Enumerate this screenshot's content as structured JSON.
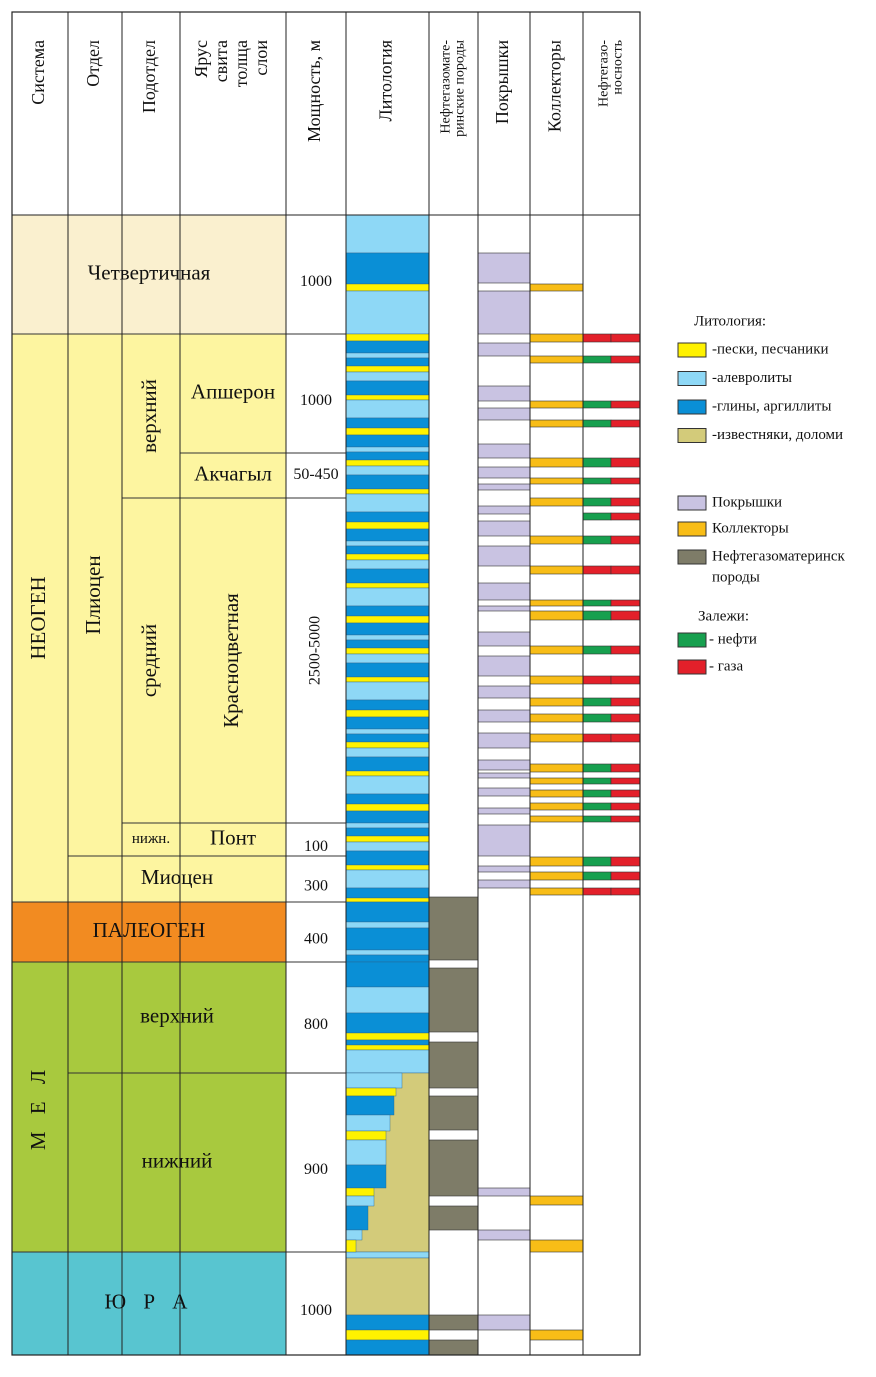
{
  "header": {
    "columns": [
      "Система",
      "Отдел",
      "Подотдел",
      [
        "Ярус",
        "свита",
        "толща",
        "слои"
      ],
      "Мощность, м",
      "Литология",
      [
        "Нефтегазомате-",
        "ринские породы"
      ],
      "Покрышки",
      "Коллекторы",
      [
        "Нефтегазо-",
        "носность"
      ]
    ]
  },
  "units": [
    "Четвертичная",
    "НЕОГЕН",
    "Плиоцен",
    "верхний",
    "Апшерон",
    "Акчагыл",
    "средний",
    "Красноцветная",
    "нижн.",
    "Понт",
    "Миоцен",
    "ПАЛЕОГЕН",
    "М Е Л",
    "верхний",
    "нижний",
    "Ю Р А"
  ],
  "thickness": [
    "1000",
    "1000",
    "50-450",
    "2500-5000",
    "100",
    "300",
    "400",
    "800",
    "900",
    "1000"
  ],
  "legend": {
    "lithology_title": "Литология:",
    "lithology": [
      "-пески, песчаники",
      "-алевролиты",
      "-глины, аргиллиты",
      "-известняки, доломи"
    ],
    "rocks": [
      "Покрышки",
      "Коллекторы",
      [
        "Нефтегазоматеринск",
        "породы"
      ]
    ],
    "deposits_title": "Залежи:",
    "deposits": [
      "- нефти",
      "- газа"
    ]
  }
}
